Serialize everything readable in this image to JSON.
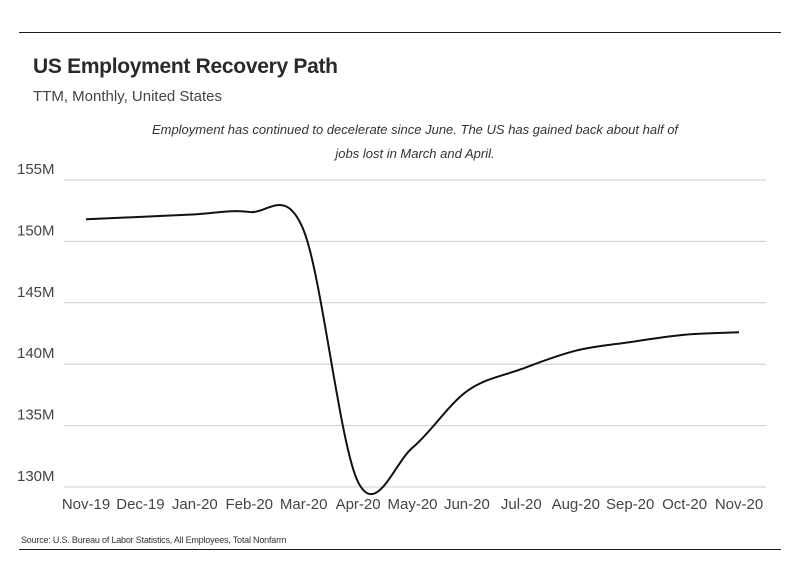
{
  "header": {
    "title": "US Employment Recovery Path",
    "subtitle": "TTM, Monthly, United States"
  },
  "annotation": {
    "line1": "Employment has continued to decelerate since June. The US has gained back about half of",
    "line2": "jobs lost in March and April."
  },
  "footer": {
    "source": "Source:  U.S. Bureau of Labor Statistics, All Employees, Total Nonfarm"
  },
  "colors": {
    "line": "#111111",
    "grid": "#cccccc",
    "rule": "#1a1a1a"
  },
  "chart_data": {
    "type": "line",
    "title": "US Employment Recovery Path",
    "subtitle": "TTM, Monthly, United States",
    "xlabel": "",
    "ylabel": "",
    "categories": [
      "Nov-19",
      "Dec-19",
      "Jan-20",
      "Feb-20",
      "Mar-20",
      "Apr-20",
      "May-20",
      "Jun-20",
      "Jul-20",
      "Aug-20",
      "Sep-20",
      "Oct-20",
      "Nov-20"
    ],
    "series": [
      {
        "values": [
          151.8,
          152.0,
          152.2,
          152.4,
          150.9,
          130.4,
          133.2,
          137.8,
          139.6,
          141.1,
          141.8,
          142.4,
          142.6
        ]
      }
    ],
    "y_ticks": [
      130,
      135,
      140,
      145,
      150,
      155
    ],
    "y_tick_labels": [
      "130M",
      "135M",
      "140M",
      "145M",
      "150M",
      "155M"
    ],
    "ylim": [
      130,
      155
    ],
    "grid": "horizontal",
    "legend": "none"
  }
}
